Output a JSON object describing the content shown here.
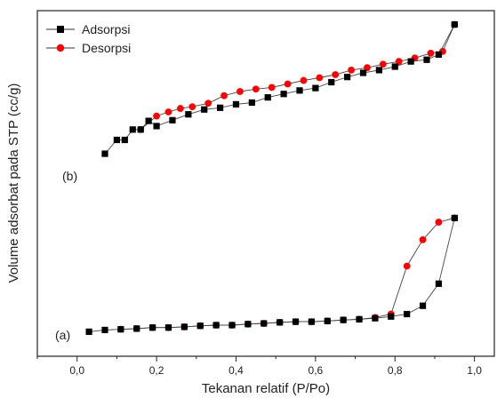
{
  "chart_data": {
    "type": "line",
    "title": "",
    "xlabel": "Tekanan relatif (P/Po)",
    "ylabel": "Volume adsorbat pada STP (cc/g)",
    "xlim": [
      -0.1,
      1.05
    ],
    "ylim": [
      0,
      100
    ],
    "xticks": [
      0.0,
      0.2,
      0.4,
      0.6,
      0.8,
      1.0
    ],
    "xtick_labels": [
      "0,0",
      "0,2",
      "0,4",
      "0,6",
      "0,8",
      "1,0"
    ],
    "y_tick_labels_shown": false,
    "legend_position": "top-left",
    "annotations": [
      {
        "id": "annot-b",
        "text": "(b)",
        "x": -0.07,
        "y": 55
      },
      {
        "id": "annot-a",
        "text": "(a)",
        "x": -0.07,
        "y": 7
      }
    ],
    "series": [
      {
        "name": "Adsorpsi",
        "group": "b",
        "marker": "square",
        "color": "#000000",
        "x": [
          0.07,
          0.1,
          0.12,
          0.14,
          0.16,
          0.18,
          0.2,
          0.24,
          0.28,
          0.32,
          0.36,
          0.4,
          0.44,
          0.48,
          0.52,
          0.56,
          0.6,
          0.64,
          0.68,
          0.72,
          0.76,
          0.8,
          0.84,
          0.88,
          0.91,
          0.95
        ],
        "y": [
          58.6,
          62.6,
          62.6,
          65.6,
          65.6,
          68.1,
          66.6,
          68.3,
          70.0,
          71.4,
          71.9,
          72.9,
          73.4,
          74.9,
          75.9,
          76.9,
          77.6,
          79.3,
          80.8,
          82.0,
          82.8,
          83.8,
          85.3,
          85.8,
          87.3,
          96.0
        ]
      },
      {
        "name": "Desorpsi",
        "group": "b",
        "marker": "circle",
        "color": "#ff0000",
        "x": [
          0.95,
          0.92,
          0.89,
          0.85,
          0.81,
          0.77,
          0.73,
          0.69,
          0.65,
          0.61,
          0.57,
          0.53,
          0.49,
          0.45,
          0.41,
          0.37,
          0.33,
          0.29,
          0.26,
          0.23,
          0.2,
          0.16
        ],
        "y": [
          96.0,
          88.2,
          87.7,
          86.3,
          85.3,
          84.5,
          83.5,
          82.8,
          81.5,
          80.6,
          79.8,
          78.8,
          77.8,
          77.3,
          76.6,
          75.4,
          73.2,
          72.2,
          71.7,
          70.7,
          69.5,
          65.6
        ]
      },
      {
        "name": "",
        "group": "a",
        "marker": "square",
        "color": "#000000",
        "x": [
          0.03,
          0.07,
          0.11,
          0.15,
          0.19,
          0.23,
          0.27,
          0.31,
          0.35,
          0.39,
          0.43,
          0.47,
          0.51,
          0.55,
          0.59,
          0.63,
          0.67,
          0.71,
          0.75,
          0.79,
          0.83,
          0.87,
          0.91,
          0.95
        ],
        "y": [
          7.1,
          7.6,
          7.8,
          8.0,
          8.3,
          8.3,
          8.5,
          8.8,
          9.0,
          9.0,
          9.3,
          9.5,
          9.8,
          10.0,
          10.0,
          10.2,
          10.5,
          10.7,
          11.0,
          11.5,
          12.2,
          14.6,
          21.0,
          40.0
        ]
      },
      {
        "name": "",
        "group": "a",
        "marker": "circle",
        "color": "#ff0000",
        "x": [
          0.95,
          0.91,
          0.87,
          0.83,
          0.79,
          0.75,
          0.71,
          0.67,
          0.63,
          0.59,
          0.55,
          0.51,
          0.47,
          0.43,
          0.39,
          0.35,
          0.31,
          0.27,
          0.23,
          0.19,
          0.15,
          0.11
        ],
        "y": [
          40.0,
          38.8,
          33.7,
          26.1,
          12.2,
          11.2,
          10.7,
          10.5,
          10.2,
          10.0,
          10.0,
          9.8,
          9.5,
          9.3,
          9.0,
          9.0,
          8.8,
          8.5,
          8.3,
          8.3,
          8.0,
          7.8
        ]
      }
    ]
  }
}
